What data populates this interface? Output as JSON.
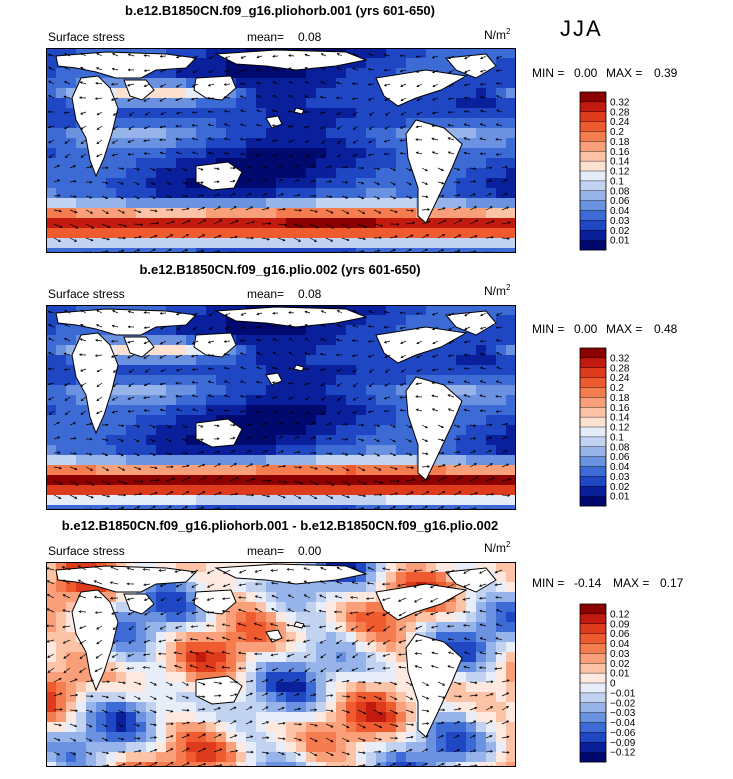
{
  "season": "JJA",
  "units": {
    "base": "N/m",
    "exp": "2"
  },
  "chart_data": [
    {
      "type": "heatmap",
      "title": "b.e12.B1850CN.f09_g16.pliohorb.001 (yrs 601-650)",
      "variable": "Surface stress",
      "mean_label": "mean=",
      "mean": "0.08",
      "min_label": "MIN =",
      "min": "0.00",
      "max_label": "MAX =",
      "max": "0.39",
      "colorbar_levels": [
        "0.32",
        "0.28",
        "0.24",
        "0.2",
        "0.18",
        "0.16",
        "0.14",
        "0.12",
        "0.1",
        "0.08",
        "0.06",
        "0.04",
        "0.03",
        "0.02",
        "0.01"
      ],
      "colorbar_colors": [
        "#8b0000",
        "#c21a0e",
        "#de3a1c",
        "#ef5a2f",
        "#f57c4f",
        "#f9a07a",
        "#fcc3a6",
        "#fde2d2",
        "#e4ecf8",
        "#c2d3f2",
        "#97b4ea",
        "#6a92e0",
        "#3d6bd6",
        "#1f47c4",
        "#0a1f9c",
        "#000a6e"
      ]
    },
    {
      "type": "heatmap",
      "title": "b.e12.B1850CN.f09_g16.plio.002 (yrs 601-650)",
      "variable": "Surface stress",
      "mean_label": "mean=",
      "mean": "0.08",
      "min_label": "MIN =",
      "min": "0.00",
      "max_label": "MAX =",
      "max": "0.48",
      "colorbar_levels": [
        "0.32",
        "0.28",
        "0.24",
        "0.2",
        "0.18",
        "0.16",
        "0.14",
        "0.12",
        "0.1",
        "0.08",
        "0.06",
        "0.04",
        "0.03",
        "0.02",
        "0.01"
      ],
      "colorbar_colors": [
        "#8b0000",
        "#c21a0e",
        "#de3a1c",
        "#ef5a2f",
        "#f57c4f",
        "#f9a07a",
        "#fcc3a6",
        "#fde2d2",
        "#e4ecf8",
        "#c2d3f2",
        "#97b4ea",
        "#6a92e0",
        "#3d6bd6",
        "#1f47c4",
        "#0a1f9c",
        "#000a6e"
      ]
    },
    {
      "type": "heatmap",
      "title": "b.e12.B1850CN.f09_g16.pliohorb.001 - b.e12.B1850CN.f09_g16.plio.002",
      "variable": "Surface stress",
      "mean_label": "mean=",
      "mean": "0.00",
      "min_label": "MIN =",
      "min": "-0.14",
      "max_label": "MAX =",
      "max": "0.17",
      "colorbar_levels": [
        "0.12",
        "0.09",
        "0.06",
        "0.04",
        "0.03",
        "0.02",
        "0.01",
        "0",
        "−0.01",
        "−0.02",
        "−0.03",
        "−0.04",
        "−0.06",
        "−0.09",
        "−0.12"
      ],
      "colorbar_colors": [
        "#8b0000",
        "#c21a0e",
        "#de3a1c",
        "#ef5a2f",
        "#f57c4f",
        "#f9a07a",
        "#fcc3a6",
        "#fde9df",
        "#e8eef9",
        "#c2d3f2",
        "#97b4ea",
        "#6a92e0",
        "#3d6bd6",
        "#1f47c4",
        "#0a1f9c",
        "#000a6e"
      ]
    }
  ]
}
